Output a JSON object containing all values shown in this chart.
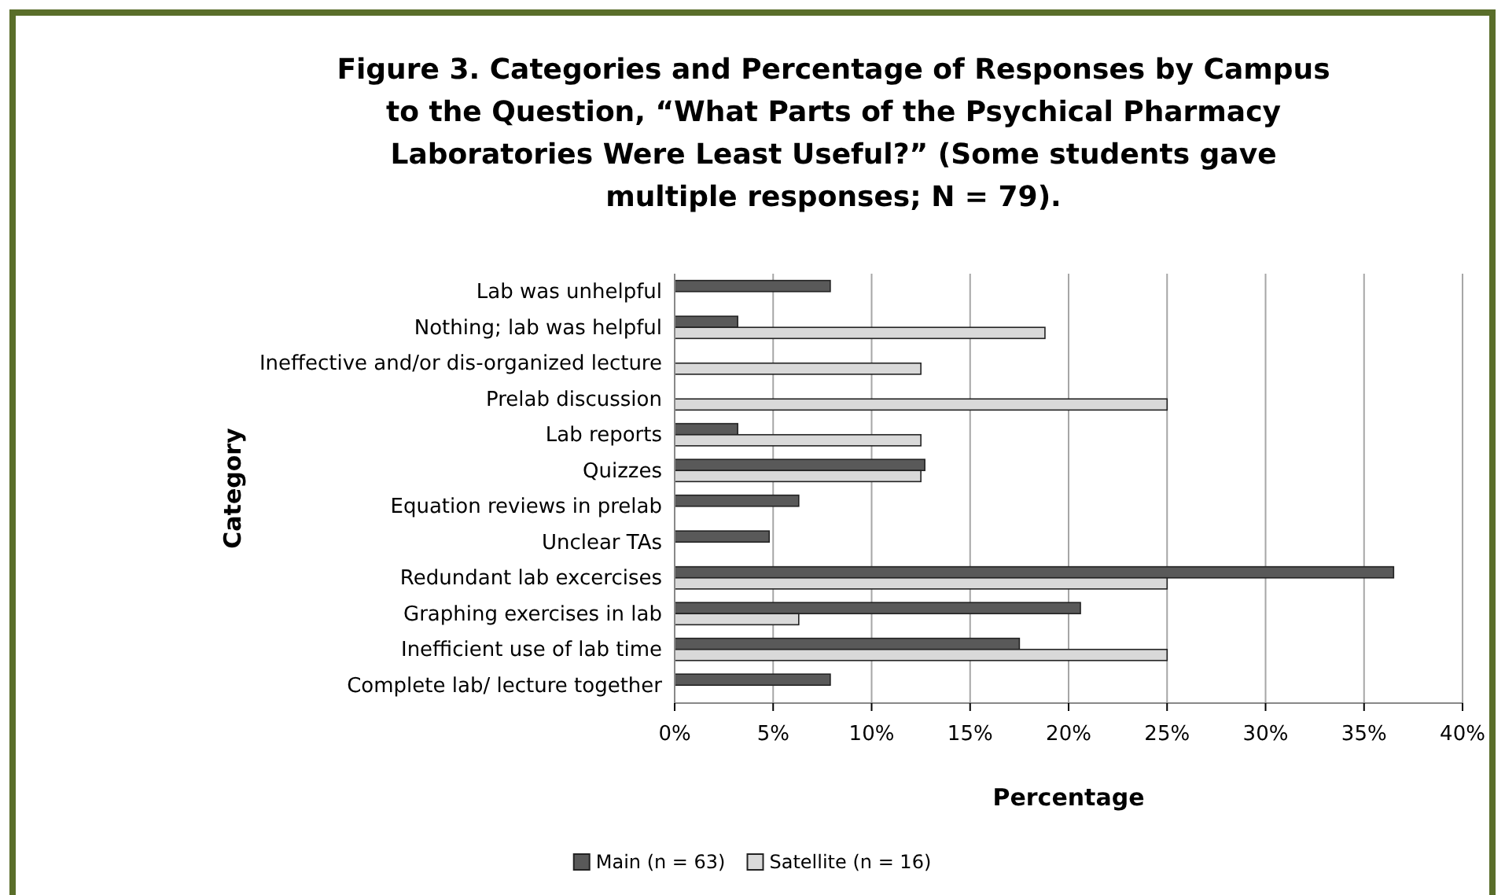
{
  "chart_data": {
    "type": "bar",
    "orientation": "horizontal",
    "title": "Figure 3.  Categories and Percentage of Responses by Campus to the Question, “What Parts of the Psychical Pharmacy Laboratories Were Least Useful?” (Some students gave multiple responses; N = 79).",
    "xlabel": "Percentage",
    "ylabel": "Category",
    "categories": [
      "Lab was unhelpful",
      "Nothing; lab was helpful",
      "Ineffective and/or dis-organized lecture",
      "Prelab discussion",
      "Lab reports",
      "Quizzes",
      "Equation reviews in prelab",
      "Unclear TAs",
      "Redundant lab excercises",
      "Graphing exercises in lab",
      "Inefficient use of lab time",
      "Complete lab/ lecture together"
    ],
    "series": [
      {
        "name": "Main (n = 63)",
        "color": "#595959",
        "values": [
          7.9,
          3.2,
          null,
          null,
          3.2,
          12.7,
          6.3,
          4.8,
          36.5,
          20.6,
          17.5,
          7.9
        ]
      },
      {
        "name": "Satellite (n = 16)",
        "color": "#d9d9d9",
        "values": [
          null,
          18.8,
          12.5,
          25,
          12.5,
          12.5,
          null,
          null,
          25,
          6.3,
          25,
          null
        ]
      }
    ],
    "xlim": [
      0,
      40
    ],
    "xticks": [
      {
        "value": 0,
        "label": "0%"
      },
      {
        "value": 5,
        "label": "5%"
      },
      {
        "value": 10,
        "label": "10%"
      },
      {
        "value": 15,
        "label": "15%"
      },
      {
        "value": 20,
        "label": "20%"
      },
      {
        "value": 25,
        "label": "25%"
      },
      {
        "value": 30,
        "label": "30%"
      },
      {
        "value": 35,
        "label": "35%"
      },
      {
        "value": 40,
        "label": "40%"
      }
    ],
    "grid": "x",
    "legend": "bottom"
  }
}
